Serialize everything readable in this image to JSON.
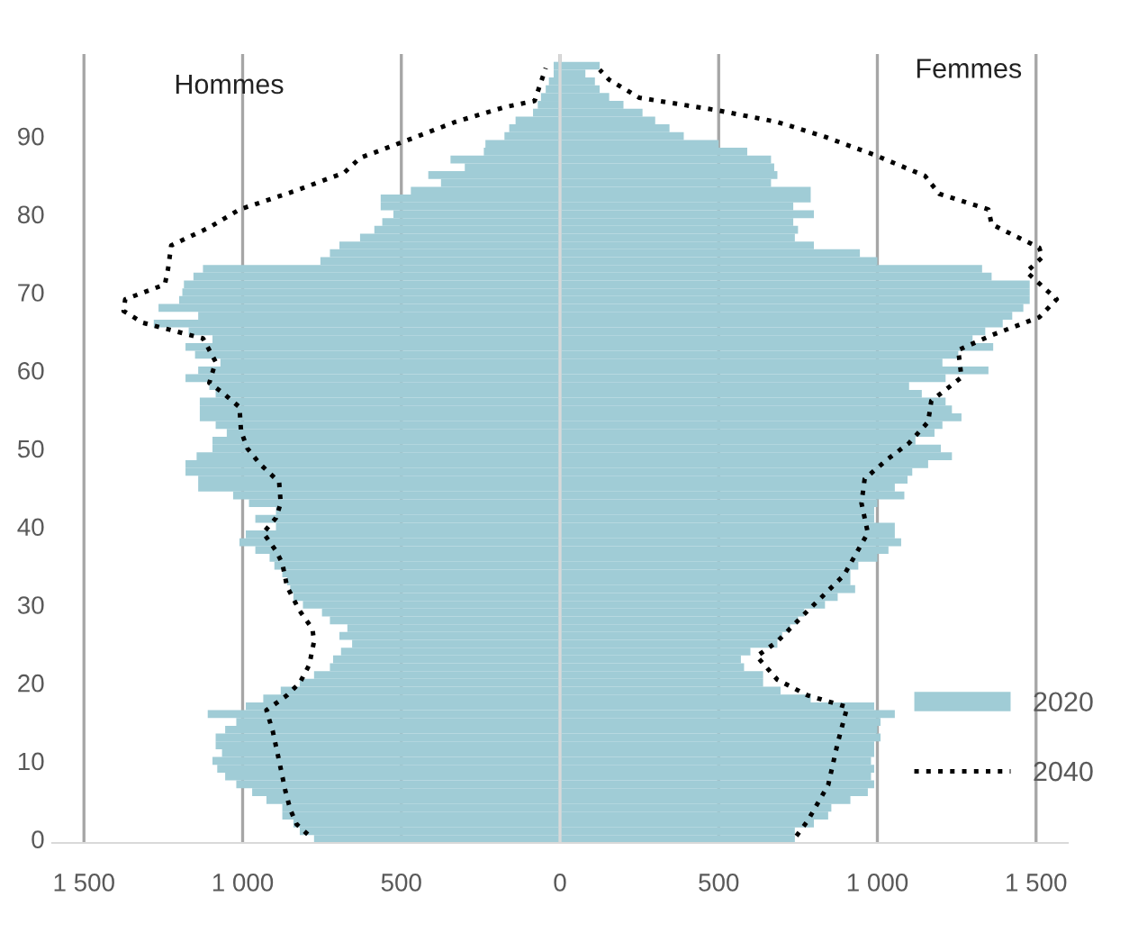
{
  "chart_data": {
    "type": "bar",
    "orientation": "horizontal",
    "x": [
      0,
      1,
      2,
      3,
      4,
      5,
      6,
      7,
      8,
      9,
      10,
      11,
      12,
      13,
      14,
      15,
      16,
      17,
      18,
      19,
      20,
      21,
      22,
      23,
      24,
      25,
      26,
      27,
      28,
      29,
      30,
      31,
      32,
      33,
      34,
      35,
      36,
      37,
      38,
      39,
      40,
      41,
      42,
      43,
      44,
      45,
      46,
      47,
      48,
      49,
      50,
      51,
      52,
      53,
      54,
      55,
      56,
      57,
      58,
      59,
      60,
      61,
      62,
      63,
      64,
      65,
      66,
      67,
      68,
      69,
      70,
      71,
      72,
      73,
      74,
      75,
      76,
      77,
      78,
      79,
      80,
      81,
      82,
      83,
      84,
      85,
      86,
      87,
      88,
      89,
      90,
      91,
      92,
      93,
      94,
      95,
      96,
      97,
      98,
      99
    ],
    "series": [
      {
        "name": "2020",
        "color": "#a0ccd6",
        "values": [
          -775,
          -820,
          -840,
          -875,
          -875,
          -925,
          -970,
          -1020,
          -1055,
          -1080,
          -1095,
          -1065,
          -1085,
          -1085,
          -1055,
          -1020,
          -1110,
          -990,
          -935,
          -880,
          -820,
          -775,
          -725,
          -715,
          -690,
          -655,
          -695,
          -670,
          -725,
          -750,
          -810,
          -840,
          -850,
          -860,
          -875,
          -900,
          -915,
          -960,
          -1010,
          -990,
          -895,
          -960,
          -895,
          -980,
          -1030,
          -1140,
          -1140,
          -1180,
          -1180,
          -1145,
          -1095,
          -1095,
          -1050,
          -1085,
          -1135,
          -1135,
          -1135,
          -1085,
          -1105,
          -1180,
          -1140,
          -1070,
          -1150,
          -1180,
          -1095,
          -1170,
          -1280,
          -1140,
          -1265,
          -1200,
          -1190,
          -1185,
          -1155,
          -1125,
          -755,
          -725,
          -695,
          -630,
          -585,
          -560,
          -525,
          -565,
          -565,
          -470,
          -375,
          -415,
          -300,
          -345,
          -240,
          -235,
          -175,
          -160,
          -140,
          -85,
          -70,
          -60,
          -45,
          -35,
          -20,
          -20
        ]
      },
      {
        "color": "#a0ccd6",
        "values": [
          740,
          740,
          800,
          845,
          855,
          915,
          970,
          990,
          980,
          990,
          980,
          990,
          990,
          1010,
          1000,
          1010,
          1055,
          990,
          790,
          695,
          640,
          640,
          580,
          570,
          600,
          685,
          700,
          725,
          750,
          770,
          835,
          875,
          930,
          915,
          915,
          940,
          1000,
          1035,
          1075,
          1055,
          1055,
          990,
          990,
          1000,
          1085,
          1055,
          1095,
          1110,
          1160,
          1235,
          1200,
          1120,
          1180,
          1205,
          1265,
          1235,
          1215,
          1140,
          1100,
          1215,
          1350,
          1205,
          1255,
          1365,
          1300,
          1340,
          1395,
          1425,
          1460,
          1480,
          1480,
          1480,
          1360,
          1330,
          1000,
          945,
          800,
          740,
          750,
          735,
          800,
          735,
          790,
          790,
          665,
          685,
          675,
          665,
          590,
          500,
          390,
          345,
          300,
          260,
          200,
          155,
          125,
          110,
          80,
          125
        ]
      },
      {
        "name": "2040",
        "type": "line",
        "color": "#000000",
        "line_style": "dotted",
        "x": [
          0.6,
          1.9,
          3.8,
          6.1,
          10,
          13.8,
          16.5,
          18.4,
          20,
          22.3,
          25.3,
          26.9,
          29.2,
          32.3,
          35.3,
          36.9,
          39.2,
          41.1,
          43,
          45.7,
          48,
          50,
          52.2,
          55.3,
          57.2,
          58.4,
          61.1,
          64.1,
          66.1,
          67.6,
          69.1,
          71,
          73,
          76,
          78.3,
          80.6,
          82.9,
          85.3,
          87.2,
          89.1,
          91.8,
          93.7,
          94.5,
          98.7
        ],
        "values": [
          -795,
          -830,
          -850,
          -865,
          -885,
          -905,
          -925,
          -860,
          -820,
          -790,
          -775,
          -780,
          -820,
          -860,
          -875,
          -895,
          -935,
          -895,
          -880,
          -885,
          -945,
          -985,
          -1005,
          -1010,
          -1065,
          -1105,
          -1085,
          -1125,
          -1315,
          -1375,
          -1370,
          -1245,
          -1235,
          -1225,
          -1105,
          -1010,
          -840,
          -680,
          -630,
          -505,
          -330,
          -175,
          -80,
          -45
        ]
      },
      {
        "type": "line",
        "color": "#000000",
        "line_style": "dotted",
        "x": [
          0.4,
          2.3,
          6.9,
          12.3,
          16.9,
          18.4,
          20.4,
          23.4,
          25.3,
          29.2,
          33.8,
          39.2,
          43,
          46.1,
          48.4,
          50.7,
          53.4,
          56.1,
          59.1,
          62.6,
          64.5,
          66.8,
          69.1,
          72.6,
          74.5,
          75.7,
          78.7,
          80.6,
          82.6,
          84.9,
          87.6,
          89.9,
          91.8,
          93.3,
          94.9,
          97.2,
          98.5
        ],
        "values": [
          745,
          780,
          845,
          875,
          905,
          780,
          685,
          620,
          685,
          780,
          895,
          970,
          950,
          960,
          1025,
          1100,
          1160,
          1170,
          1265,
          1255,
          1360,
          1510,
          1565,
          1470,
          1520,
          1510,
          1360,
          1350,
          1195,
          1150,
          990,
          835,
          685,
          495,
          250,
          155,
          125
        ]
      }
    ],
    "xlim": [
      -1600,
      1600
    ],
    "xticks": [
      {
        "value": -1500,
        "label": "1 500"
      },
      {
        "value": -1000,
        "label": "1 000"
      },
      {
        "value": -500,
        "label": "500"
      },
      0,
      500,
      {
        "value": 1000,
        "label": "1 000"
      },
      {
        "value": 1500,
        "label": "1 500"
      }
    ],
    "ylim": [
      -0.5,
      100.5
    ],
    "yticks": [
      0,
      10,
      20,
      30,
      40,
      50,
      60,
      70,
      80,
      90
    ],
    "grid": "x",
    "stacked": true,
    "ref_lines": [
      {
        "axis": "x",
        "value": 0,
        "color": "#d9d9d9"
      }
    ],
    "annotations": [
      "Hommes",
      "Femmes"
    ],
    "legend": "bottom right"
  }
}
